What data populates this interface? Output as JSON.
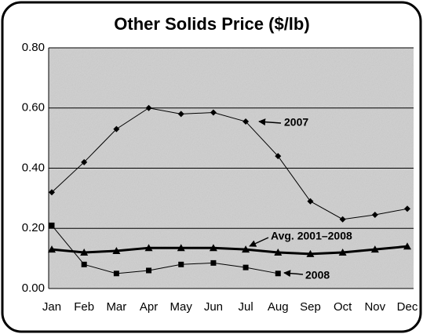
{
  "chart_data": {
    "type": "line",
    "title": "Other Solids Price ($/lb)",
    "categories": [
      "Jan",
      "Feb",
      "Mar",
      "Apr",
      "May",
      "Jun",
      "Jul",
      "Aug",
      "Sep",
      "Oct",
      "Nov",
      "Dec"
    ],
    "series": [
      {
        "name": "2007",
        "color": "#000000",
        "values": [
          0.32,
          0.42,
          0.53,
          0.6,
          0.58,
          0.585,
          0.555,
          0.44,
          0.29,
          0.23,
          0.245,
          0.265
        ]
      },
      {
        "name": "Avg. 2001–2008",
        "color": "#000000",
        "values": [
          0.13,
          0.12,
          0.125,
          0.135,
          0.135,
          0.135,
          0.13,
          0.12,
          0.115,
          0.12,
          0.13,
          0.14
        ]
      },
      {
        "name": "2008",
        "color": "#000000",
        "values": [
          0.21,
          0.08,
          0.05,
          0.06,
          0.08,
          0.085,
          0.07,
          0.05,
          null,
          null,
          null,
          null
        ]
      }
    ],
    "ylim": [
      0,
      0.8
    ],
    "yticks": [
      {
        "value": 0,
        "label": "0.00"
      },
      {
        "value": 0.2,
        "label": "0.20"
      },
      {
        "value": 0.4,
        "label": "0.40"
      },
      {
        "value": 0.6,
        "label": "0.60"
      },
      {
        "value": 0.8,
        "label": "0.80"
      }
    ],
    "grid": true
  }
}
